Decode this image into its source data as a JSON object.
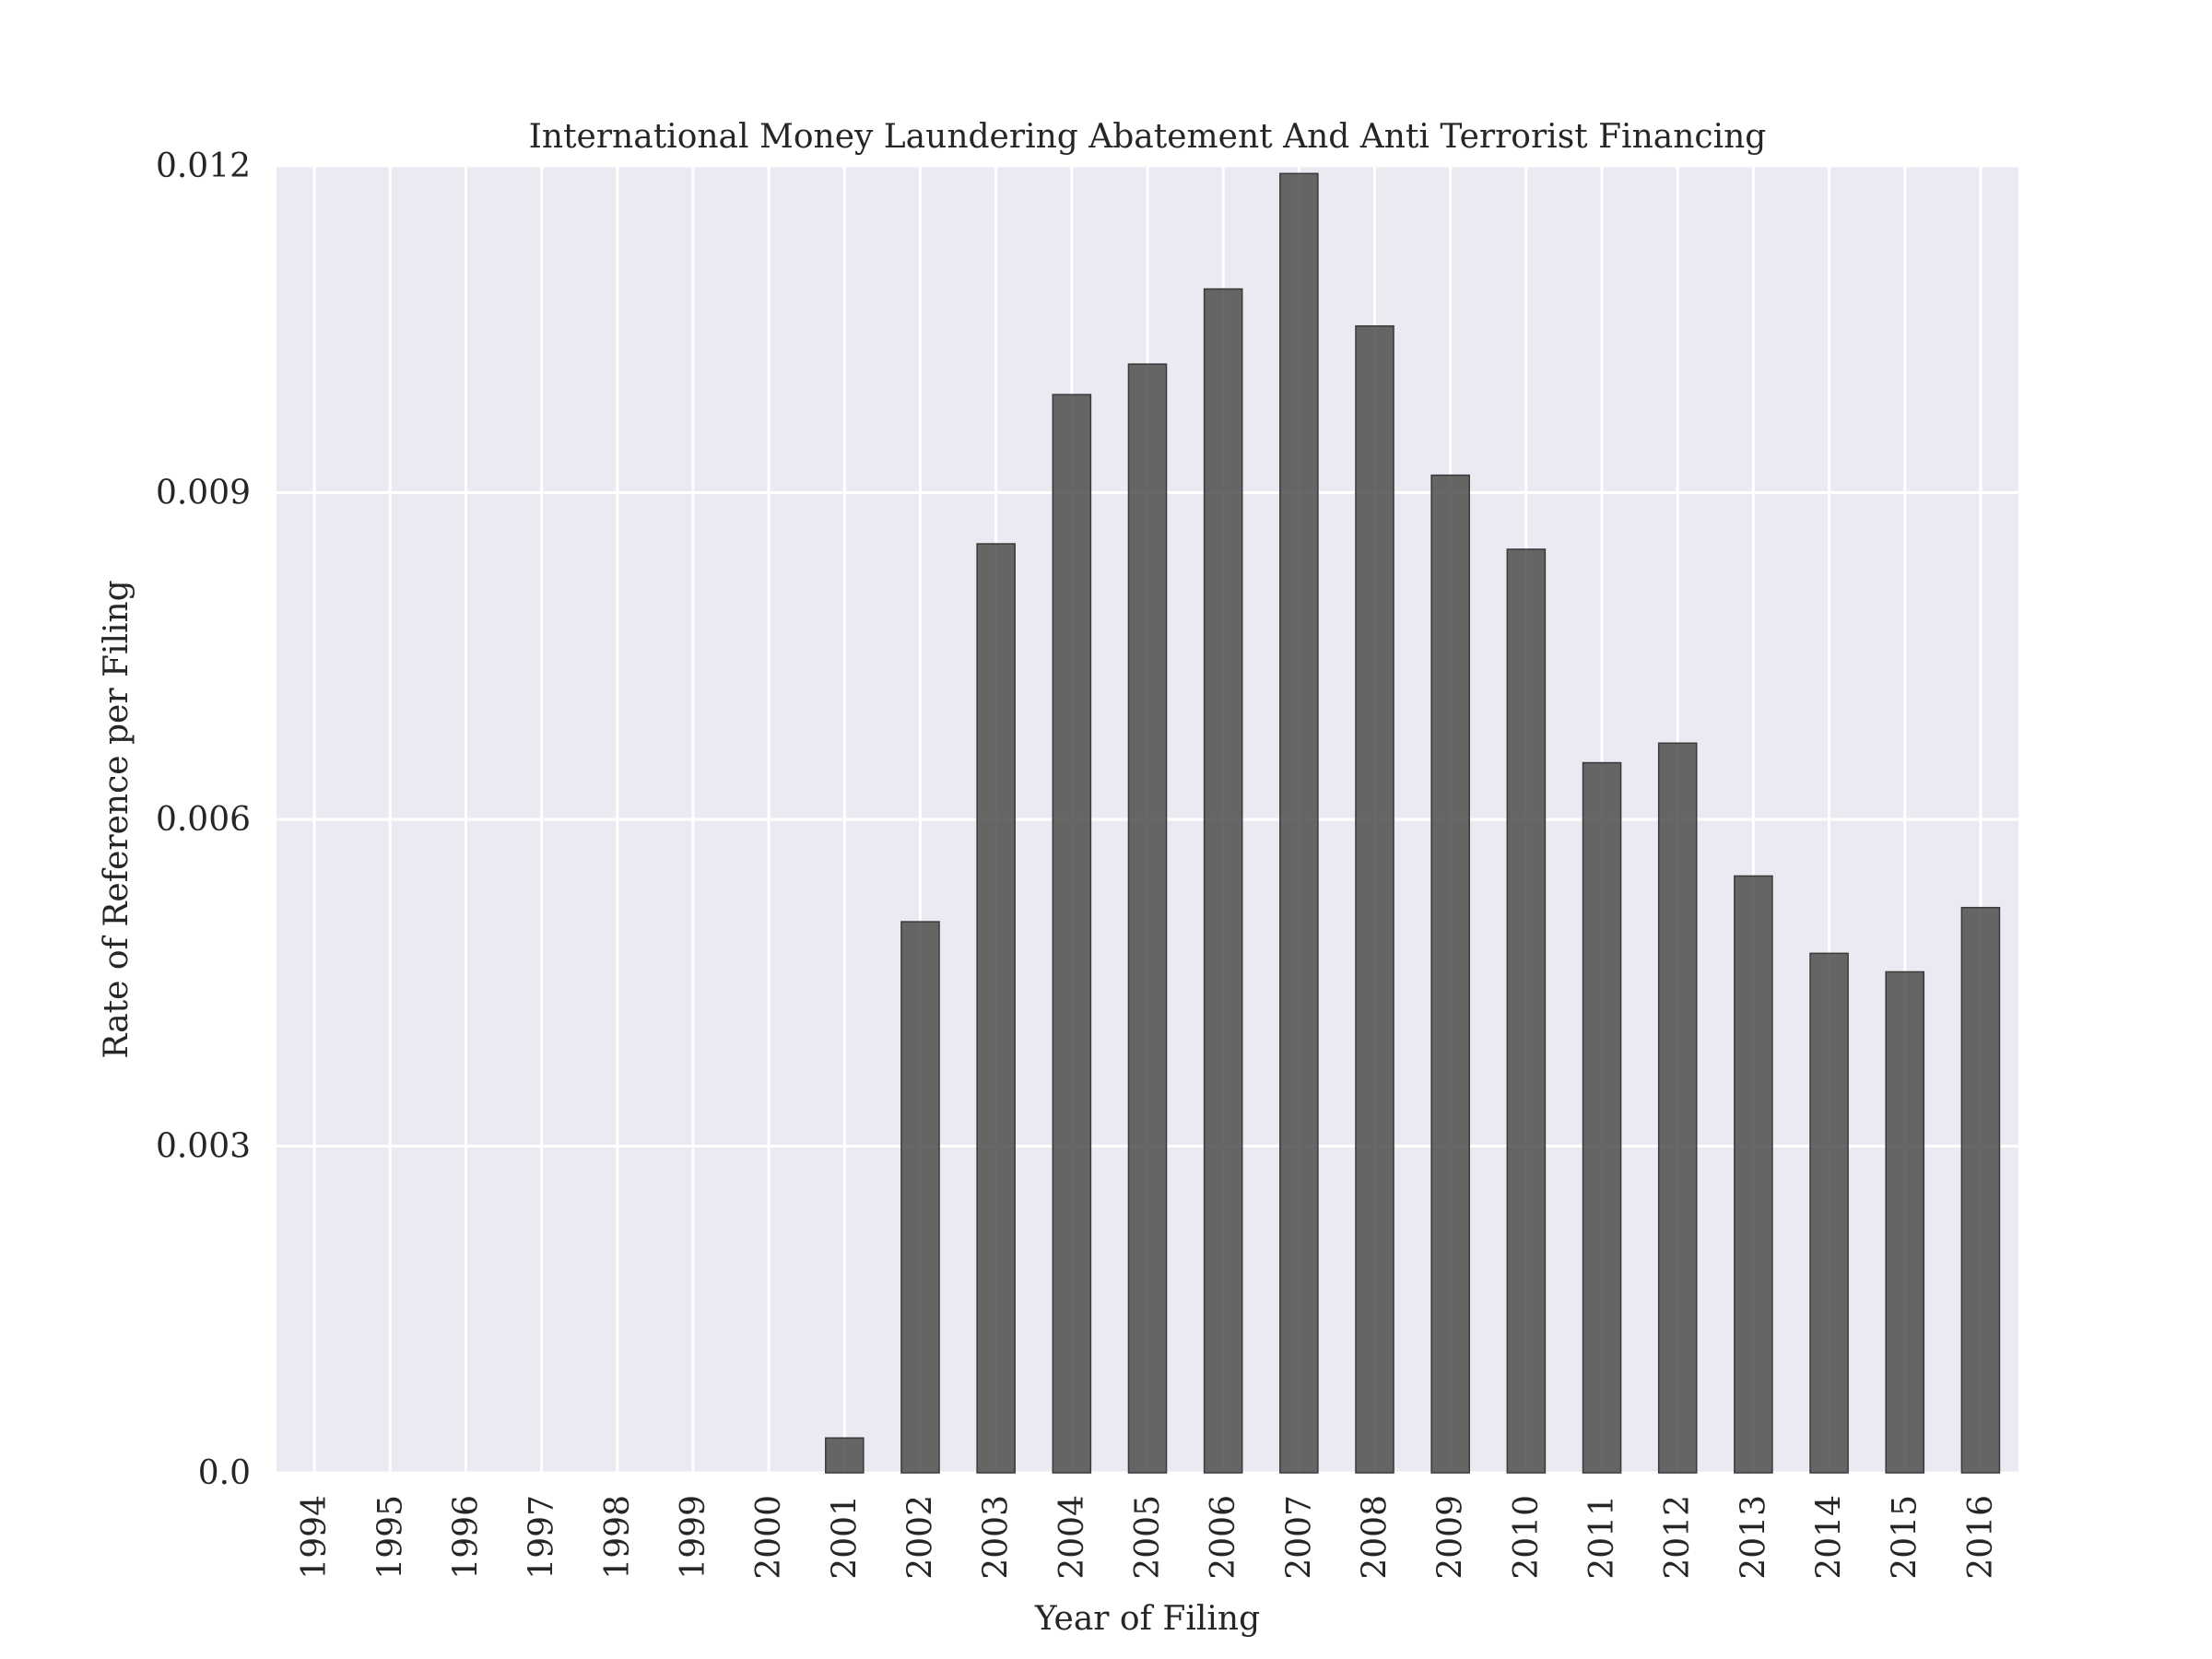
{
  "chart_data": {
    "type": "bar",
    "title": "International Money Laundering Abatement And Anti Terrorist Financing",
    "xlabel": "Year of Filing",
    "ylabel": "Rate of Reference per Filing",
    "categories": [
      "1994",
      "1995",
      "1996",
      "1997",
      "1998",
      "1999",
      "2000",
      "2001",
      "2002",
      "2003",
      "2004",
      "2005",
      "2006",
      "2007",
      "2008",
      "2009",
      "2010",
      "2011",
      "2012",
      "2013",
      "2014",
      "2015",
      "2016"
    ],
    "values": [
      0,
      0,
      0,
      0,
      0,
      0,
      0,
      0.00032,
      0.00506,
      0.00853,
      0.0099,
      0.01018,
      0.01087,
      0.01193,
      0.01053,
      0.00916,
      0.00848,
      0.00652,
      0.0067,
      0.00548,
      0.00477,
      0.0046,
      0.00519
    ],
    "ylim": [
      0,
      0.012
    ],
    "yticks": [
      0,
      0.003,
      0.006,
      0.009,
      0.012
    ],
    "ytick_labels": [
      "0.0",
      "0.003",
      "0.006",
      "0.009",
      "0.012"
    ],
    "grid": true,
    "bar_color": "#4d4d4d",
    "background_color": "#eaeaf2"
  }
}
